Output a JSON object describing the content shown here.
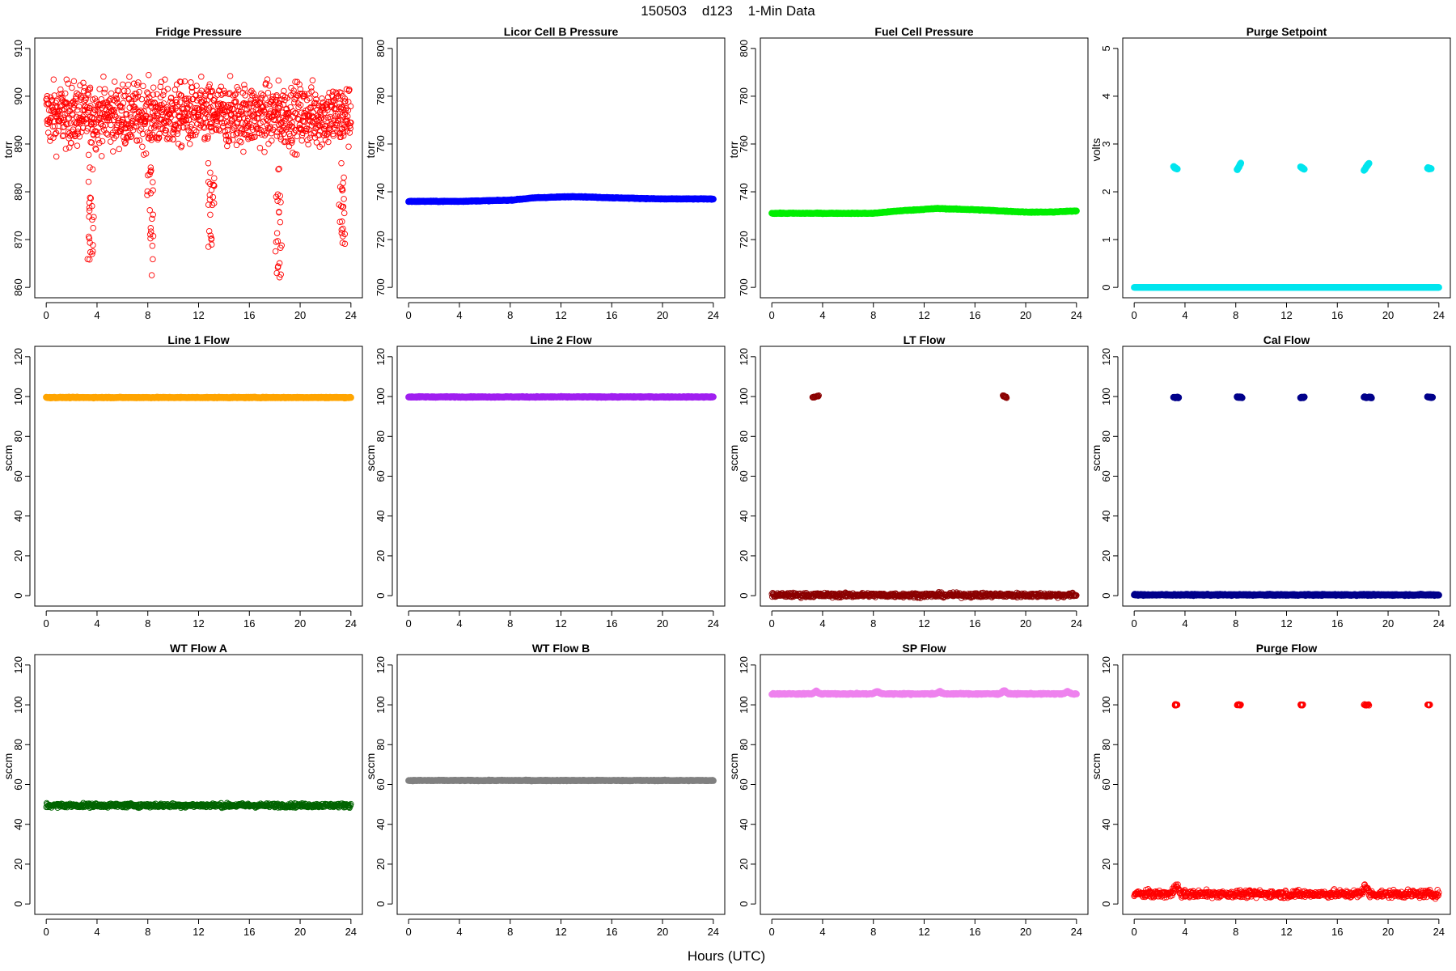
{
  "figure": {
    "title": "150503    d123    1-Min Data",
    "xlabel": "Hours (UTC)"
  },
  "chart_data": [
    {
      "type": "scatter",
      "title": "Fridge Pressure",
      "ylabel": "torr",
      "xlim": [
        0,
        24
      ],
      "ylim": [
        860,
        910
      ],
      "xticks": [
        0,
        4,
        8,
        12,
        16,
        20,
        24
      ],
      "yticks": [
        860,
        870,
        880,
        890,
        900,
        910
      ],
      "color": "#ff0000",
      "marker": "open",
      "pattern": "noisy",
      "base": 896,
      "spread": 6.5,
      "dips": [
        {
          "x": 3.5,
          "low": 865
        },
        {
          "x": 8.2,
          "low": 861
        },
        {
          "x": 13.0,
          "low": 868
        },
        {
          "x": 18.3,
          "low": 862
        },
        {
          "x": 23.3,
          "low": 867
        }
      ]
    },
    {
      "type": "scatter",
      "title": "Licor Cell B Pressure",
      "ylabel": "torr",
      "xlim": [
        0,
        24
      ],
      "ylim": [
        700,
        800
      ],
      "xticks": [
        0,
        4,
        8,
        12,
        16,
        20,
        24
      ],
      "yticks": [
        700,
        720,
        740,
        760,
        780,
        800
      ],
      "color": "#0000ff",
      "marker": "filled",
      "pattern": "curve",
      "curve": [
        [
          0,
          736
        ],
        [
          4,
          736
        ],
        [
          8,
          736.5
        ],
        [
          10,
          737.5
        ],
        [
          13,
          738
        ],
        [
          16,
          737.5
        ],
        [
          20,
          737
        ],
        [
          24,
          737
        ]
      ]
    },
    {
      "type": "scatter",
      "title": "Fuel Cell Pressure",
      "ylabel": "torr",
      "xlim": [
        0,
        24
      ],
      "ylim": [
        700,
        800
      ],
      "xticks": [
        0,
        4,
        8,
        12,
        16,
        20,
        24
      ],
      "yticks": [
        700,
        720,
        740,
        760,
        780,
        800
      ],
      "color": "#00ee00",
      "marker": "filled",
      "pattern": "curve",
      "curve": [
        [
          0,
          731
        ],
        [
          4,
          731
        ],
        [
          8,
          731
        ],
        [
          10,
          732
        ],
        [
          13,
          733
        ],
        [
          16,
          732.5
        ],
        [
          20,
          731.5
        ],
        [
          22,
          731.5
        ],
        [
          24,
          732
        ]
      ]
    },
    {
      "type": "scatter",
      "title": "Purge Setpoint",
      "ylabel": "volts",
      "xlim": [
        0,
        24
      ],
      "ylim": [
        0,
        5
      ],
      "xticks": [
        0,
        4,
        8,
        12,
        16,
        20,
        24
      ],
      "yticks": [
        0,
        1,
        2,
        3,
        4,
        5
      ],
      "color": "#00e5ee",
      "marker": "filled",
      "pattern": "baseline_events",
      "base": 0,
      "spread": 0,
      "events": [
        {
          "x0": 3.1,
          "x1": 3.4,
          "y0": 2.52,
          "y1": 2.48
        },
        {
          "x0": 8.1,
          "x1": 8.4,
          "y0": 2.45,
          "y1": 2.6
        },
        {
          "x0": 13.1,
          "x1": 13.4,
          "y0": 2.52,
          "y1": 2.47
        },
        {
          "x0": 18.1,
          "x1": 18.5,
          "y0": 2.45,
          "y1": 2.6
        },
        {
          "x0": 23.1,
          "x1": 23.4,
          "y0": 2.5,
          "y1": 2.48
        }
      ]
    },
    {
      "type": "scatter",
      "title": "Line 1 Flow",
      "ylabel": "sccm",
      "xlim": [
        0,
        24
      ],
      "ylim": [
        0,
        120
      ],
      "xticks": [
        0,
        4,
        8,
        12,
        16,
        20,
        24
      ],
      "yticks": [
        0,
        20,
        40,
        60,
        80,
        100,
        120
      ],
      "color": "#ffa500",
      "marker": "filled",
      "pattern": "flat",
      "base": 99.5,
      "spread": 0.2
    },
    {
      "type": "scatter",
      "title": "Line 2 Flow",
      "ylabel": "sccm",
      "xlim": [
        0,
        24
      ],
      "ylim": [
        0,
        120
      ],
      "xticks": [
        0,
        4,
        8,
        12,
        16,
        20,
        24
      ],
      "yticks": [
        0,
        20,
        40,
        60,
        80,
        100,
        120
      ],
      "color": "#a020f0",
      "marker": "filled",
      "pattern": "flat",
      "base": 99.8,
      "spread": 0.2
    },
    {
      "type": "scatter",
      "title": "LT Flow",
      "ylabel": "sccm",
      "xlim": [
        0,
        24
      ],
      "ylim": [
        0,
        120
      ],
      "xticks": [
        0,
        4,
        8,
        12,
        16,
        20,
        24
      ],
      "yticks": [
        0,
        20,
        40,
        60,
        80,
        100,
        120
      ],
      "color": "#8b0000",
      "marker": "open",
      "pattern": "baseline_events",
      "base": 0.3,
      "spread": 1.1,
      "events": [
        {
          "x0": 3.2,
          "x1": 3.7,
          "y0": 99.5,
          "y1": 100.5
        },
        {
          "x0": 18.2,
          "x1": 18.5,
          "y0": 100.5,
          "y1": 99.5
        }
      ]
    },
    {
      "type": "scatter",
      "title": "Cal Flow",
      "ylabel": "sccm",
      "xlim": [
        0,
        24
      ],
      "ylim": [
        0,
        120
      ],
      "xticks": [
        0,
        4,
        8,
        12,
        16,
        20,
        24
      ],
      "yticks": [
        0,
        20,
        40,
        60,
        80,
        100,
        120
      ],
      "color": "#00008b",
      "marker": "filled",
      "pattern": "baseline_events",
      "base": 0.4,
      "spread": 0.3,
      "events": [
        {
          "x0": 3.1,
          "x1": 3.5,
          "y0": 99.6,
          "y1": 99.6
        },
        {
          "x0": 8.1,
          "x1": 8.5,
          "y0": 99.6,
          "y1": 99.6
        },
        {
          "x0": 13.1,
          "x1": 13.4,
          "y0": 99.6,
          "y1": 99.6
        },
        {
          "x0": 18.1,
          "x1": 18.7,
          "y0": 99.6,
          "y1": 99.6
        },
        {
          "x0": 23.1,
          "x1": 23.5,
          "y0": 99.6,
          "y1": 99.6
        }
      ]
    },
    {
      "type": "scatter",
      "title": "WT Flow A",
      "ylabel": "sccm",
      "xlim": [
        0,
        24
      ],
      "ylim": [
        0,
        120
      ],
      "xticks": [
        0,
        4,
        8,
        12,
        16,
        20,
        24
      ],
      "yticks": [
        0,
        20,
        40,
        60,
        80,
        100,
        120
      ],
      "color": "#006400",
      "marker": "open",
      "pattern": "flat",
      "base": 49.5,
      "spread": 1.0
    },
    {
      "type": "scatter",
      "title": "WT Flow B",
      "ylabel": "sccm",
      "xlim": [
        0,
        24
      ],
      "ylim": [
        0,
        120
      ],
      "xticks": [
        0,
        4,
        8,
        12,
        16,
        20,
        24
      ],
      "yticks": [
        0,
        20,
        40,
        60,
        80,
        100,
        120
      ],
      "color": "#808080",
      "marker": "filled",
      "pattern": "flat",
      "base": 62,
      "spread": 0.2
    },
    {
      "type": "scatter",
      "title": "SP Flow",
      "ylabel": "sccm",
      "xlim": [
        0,
        24
      ],
      "ylim": [
        0,
        120
      ],
      "xticks": [
        0,
        4,
        8,
        12,
        16,
        20,
        24
      ],
      "yticks": [
        0,
        20,
        40,
        60,
        80,
        100,
        120
      ],
      "color": "#ee82ee",
      "marker": "filled",
      "pattern": "flat",
      "base": 105.5,
      "spread": 0.3,
      "bumps": [
        {
          "x": 3.5,
          "peak": 107
        },
        {
          "x": 8.3,
          "peak": 107
        },
        {
          "x": 13.2,
          "peak": 106.8
        },
        {
          "x": 18.3,
          "peak": 107.5
        },
        {
          "x": 23.3,
          "peak": 106.8
        }
      ]
    },
    {
      "type": "scatter",
      "title": "Purge Flow",
      "ylabel": "sccm",
      "xlim": [
        0,
        24
      ],
      "ylim": [
        0,
        120
      ],
      "xticks": [
        0,
        4,
        8,
        12,
        16,
        20,
        24
      ],
      "yticks": [
        0,
        20,
        40,
        60,
        80,
        100,
        120
      ],
      "color": "#ff0000",
      "marker": "open",
      "pattern": "baseline_events",
      "base": 5,
      "spread": 1.8,
      "bumps": [
        {
          "x": 3.3,
          "peak": 11
        },
        {
          "x": 18.2,
          "peak": 10
        }
      ],
      "events": [
        {
          "x0": 3.2,
          "x1": 3.4,
          "y0": 100,
          "y1": 100
        },
        {
          "x0": 8.1,
          "x1": 8.4,
          "y0": 100,
          "y1": 100
        },
        {
          "x0": 13.1,
          "x1": 13.3,
          "y0": 100,
          "y1": 100
        },
        {
          "x0": 18.1,
          "x1": 18.5,
          "y0": 100,
          "y1": 100
        },
        {
          "x0": 23.1,
          "x1": 23.3,
          "y0": 100,
          "y1": 100
        }
      ]
    }
  ]
}
